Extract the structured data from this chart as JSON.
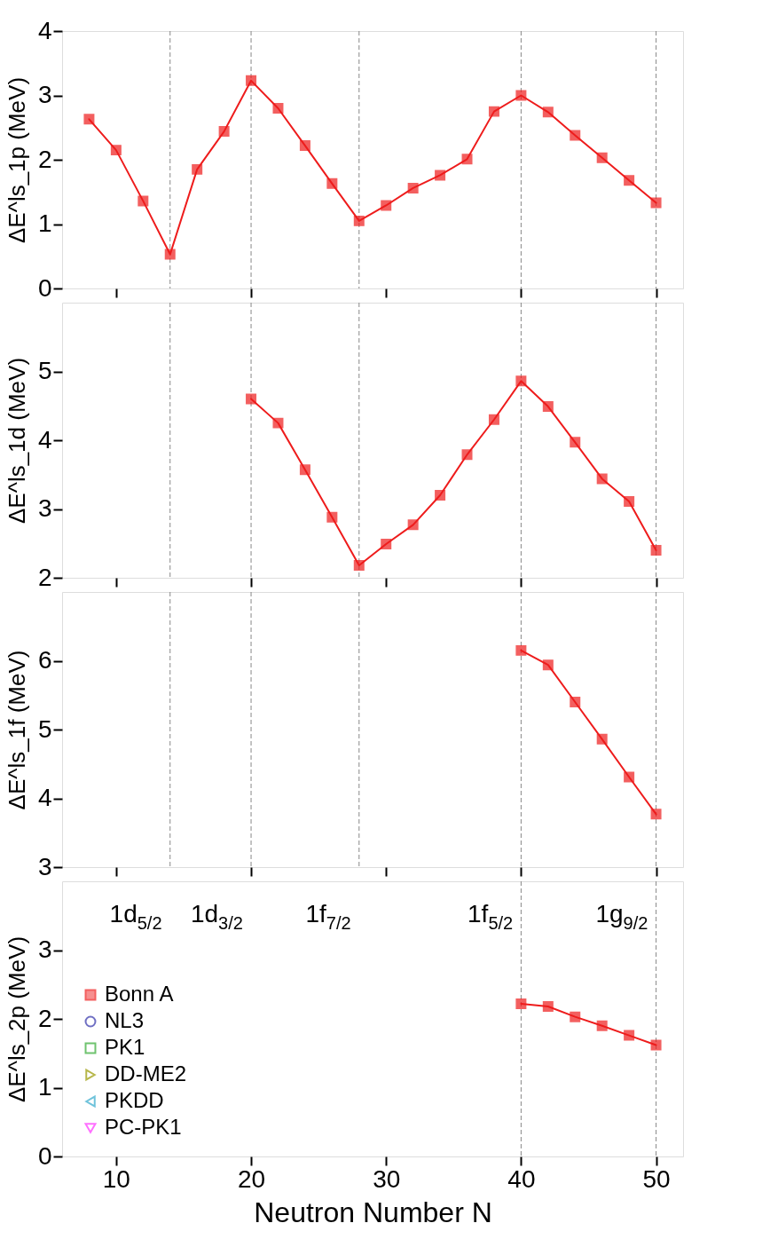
{
  "chart_data": [
    {
      "type": "line",
      "ylabel": "ΔE^ls_1p (MeV)",
      "xlim": [
        6,
        52
      ],
      "xticks": [
        10,
        20,
        30,
        40,
        50
      ],
      "ylim": [
        0,
        4
      ],
      "yticks": [
        0,
        1,
        2,
        3,
        4
      ],
      "tick_labels": "y",
      "grid": false,
      "legend": false,
      "ref_lines": [
        {
          "axis": "x",
          "value": 14,
          "color": "#888888",
          "line_style": "dashed"
        },
        {
          "axis": "x",
          "value": 20,
          "color": "#888888",
          "line_style": "dashed"
        },
        {
          "axis": "x",
          "value": 28,
          "color": "#888888",
          "line_style": "dashed"
        },
        {
          "axis": "x",
          "value": 40,
          "color": "#888888",
          "line_style": "dashed"
        },
        {
          "axis": "x",
          "value": 50,
          "color": "#888888",
          "line_style": "dashed"
        }
      ],
      "x": [
        8,
        10,
        12,
        14,
        16,
        18,
        20,
        22,
        24,
        26,
        28,
        30,
        32,
        34,
        36,
        38,
        40,
        42,
        44,
        46,
        48,
        50
      ],
      "series": [
        {
          "color": "#ee1c1c",
          "marker": "square",
          "line_style": "solid",
          "values": [
            2.63,
            2.15,
            1.36,
            0.53,
            1.85,
            2.44,
            3.23,
            2.8,
            2.22,
            1.63,
            1.05,
            1.29,
            1.56,
            1.76,
            2.01,
            2.75,
            3.0,
            2.74,
            2.38,
            2.03,
            1.68,
            1.33
          ]
        }
      ]
    },
    {
      "type": "line",
      "ylabel": "ΔE^ls_1d (MeV)",
      "xlim": [
        6,
        52
      ],
      "xticks": [
        10,
        20,
        30,
        40,
        50
      ],
      "ylim": [
        2,
        6
      ],
      "yticks": [
        2,
        3,
        4,
        5
      ],
      "tick_labels": "y",
      "grid": false,
      "legend": false,
      "ref_lines": [
        {
          "axis": "x",
          "value": 14,
          "color": "#888888",
          "line_style": "dashed"
        },
        {
          "axis": "x",
          "value": 20,
          "color": "#888888",
          "line_style": "dashed"
        },
        {
          "axis": "x",
          "value": 28,
          "color": "#888888",
          "line_style": "dashed"
        },
        {
          "axis": "x",
          "value": 40,
          "color": "#888888",
          "line_style": "dashed"
        },
        {
          "axis": "x",
          "value": 50,
          "color": "#888888",
          "line_style": "dashed"
        }
      ],
      "x": [
        20,
        22,
        24,
        26,
        28,
        30,
        32,
        34,
        36,
        38,
        40,
        42,
        44,
        46,
        48,
        50
      ],
      "series": [
        {
          "color": "#ee1c1c",
          "marker": "square",
          "line_style": "solid",
          "values": [
            4.6,
            4.25,
            3.57,
            2.88,
            2.18,
            2.49,
            2.77,
            3.2,
            3.79,
            4.3,
            4.86,
            4.49,
            3.97,
            3.44,
            3.11,
            2.4
          ]
        }
      ]
    },
    {
      "type": "line",
      "ylabel": "ΔE^ls_1f (MeV)",
      "xlim": [
        6,
        52
      ],
      "xticks": [
        10,
        20,
        30,
        40,
        50
      ],
      "ylim": [
        3,
        7
      ],
      "yticks": [
        3,
        4,
        5,
        6
      ],
      "tick_labels": "y",
      "grid": false,
      "legend": false,
      "ref_lines": [
        {
          "axis": "x",
          "value": 14,
          "color": "#888888",
          "line_style": "dashed"
        },
        {
          "axis": "x",
          "value": 20,
          "color": "#888888",
          "line_style": "dashed"
        },
        {
          "axis": "x",
          "value": 28,
          "color": "#888888",
          "line_style": "dashed"
        },
        {
          "axis": "x",
          "value": 40,
          "color": "#888888",
          "line_style": "dashed"
        },
        {
          "axis": "x",
          "value": 50,
          "color": "#888888",
          "line_style": "dashed"
        }
      ],
      "x": [
        40,
        42,
        44,
        46,
        48,
        50
      ],
      "series": [
        {
          "color": "#ee1c1c",
          "marker": "square",
          "line_style": "solid",
          "values": [
            6.15,
            5.94,
            5.4,
            4.86,
            4.31,
            3.77
          ]
        }
      ]
    },
    {
      "type": "line",
      "ylabel": "ΔE^ls_2p (MeV)",
      "xlabel": "Neutron Number N",
      "xlim": [
        6,
        52
      ],
      "xticks": [
        10,
        20,
        30,
        40,
        50
      ],
      "ylim": [
        0,
        4
      ],
      "yticks": [
        0,
        1,
        2,
        3
      ],
      "grid": false,
      "legend": "bottom left",
      "ref_lines": [
        {
          "axis": "x",
          "value": 40,
          "color": "#888888",
          "line_style": "dashed"
        },
        {
          "axis": "x",
          "value": 50,
          "color": "#888888",
          "line_style": "dashed"
        }
      ],
      "annotations": [
        "1d$_{5/2}$",
        "1d$_{3/2}$",
        "1f$_{7/2}$",
        "1f$_{5/2}$",
        "1g$_{9/2}$"
      ],
      "x": [
        40,
        42,
        44,
        46,
        48,
        50
      ],
      "series": [
        {
          "name": "Bonn A",
          "color": "#ee1c1c",
          "marker": "square",
          "line_style": "solid",
          "values": [
            2.22,
            2.18,
            2.03,
            1.9,
            1.76,
            1.62
          ]
        },
        {
          "name": "NL3",
          "color": "#3333aa",
          "marker": "circle",
          "line_style": "dashed",
          "values": [
            null,
            null,
            null,
            null,
            null,
            null
          ]
        },
        {
          "name": "PK1",
          "color": "#33aa33",
          "marker": "square",
          "line_style": "dashed",
          "values": [
            null,
            null,
            null,
            null,
            null,
            null
          ]
        },
        {
          "name": "DD-ME2",
          "color": "#999900",
          "marker": "triangle-right",
          "line_style": "dashed",
          "values": [
            null,
            null,
            null,
            null,
            null,
            null
          ]
        },
        {
          "name": "PKDD",
          "color": "#33aacc",
          "marker": "triangle-left",
          "line_style": "dashed",
          "values": [
            null,
            null,
            null,
            null,
            null,
            null
          ]
        },
        {
          "name": "PC-PK1",
          "color": "#ff33ff",
          "marker": "triangle-down",
          "line_style": "dashed",
          "values": [
            null,
            null,
            null,
            null,
            null,
            null
          ]
        }
      ]
    }
  ]
}
